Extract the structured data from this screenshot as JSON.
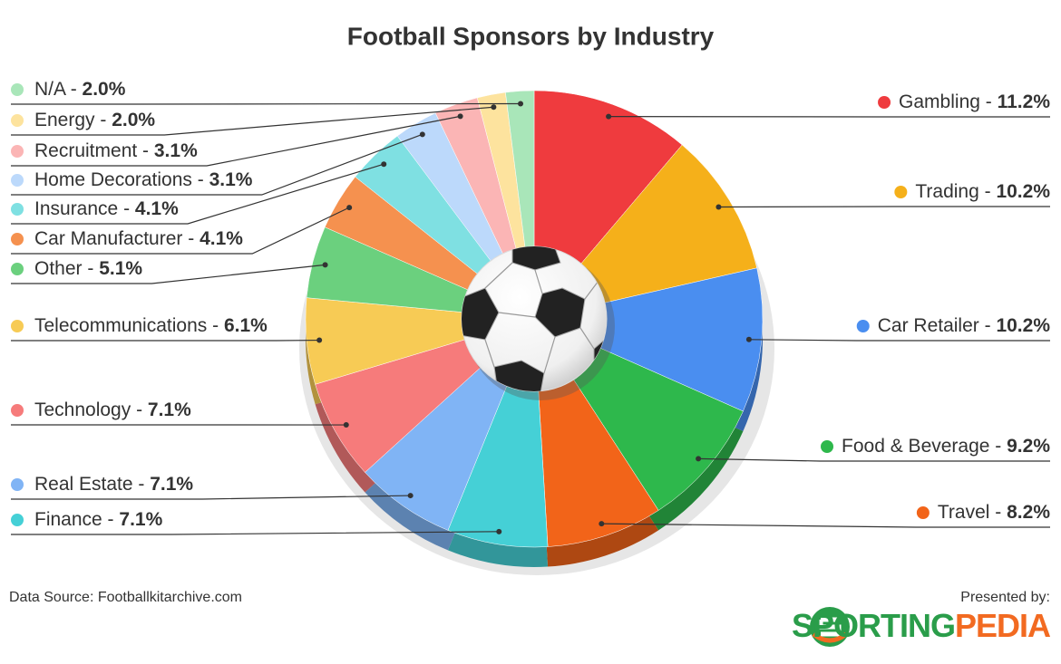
{
  "chart_data": {
    "type": "pie",
    "title": "Football Sponsors by Industry",
    "categories": [
      "Gambling",
      "Trading",
      "Car Retailer",
      "Food & Beverage",
      "Travel",
      "Finance",
      "Real Estate",
      "Technology",
      "Telecommunications",
      "Other",
      "Car Manufacturer",
      "Insurance",
      "Home Decorations",
      "Recruitment",
      "Energy",
      "N/A"
    ],
    "values": [
      11.2,
      10.2,
      10.2,
      9.2,
      8.2,
      7.1,
      7.1,
      7.1,
      6.1,
      5.1,
      4.1,
      4.1,
      3.1,
      3.1,
      2.0,
      2.0
    ],
    "value_labels": [
      "11.2%",
      "10.2%",
      "10.2%",
      "9.2%",
      "8.2%",
      "7.1%",
      "7.1%",
      "7.1%",
      "6.1%",
      "5.1%",
      "4.1%",
      "4.1%",
      "3.1%",
      "3.1%",
      "2.0%",
      "2.0%"
    ],
    "label_separator": " - ",
    "colors": [
      "#ef3b3e",
      "#f5b01a",
      "#4a8ef0",
      "#2eb84c",
      "#f26419",
      "#45d0d6",
      "#80b4f5",
      "#f67b7b",
      "#f7cb55",
      "#6bd07e",
      "#f5914f",
      "#7fe0e2",
      "#bcd9fb",
      "#fbb5b5",
      "#fde39e",
      "#a9e6b9"
    ],
    "source": "Data Source: Footballkitarchive.com",
    "presented_by": "Presented by:",
    "logo": {
      "part1": "SPORTING",
      "part2": "PEDIA"
    }
  }
}
